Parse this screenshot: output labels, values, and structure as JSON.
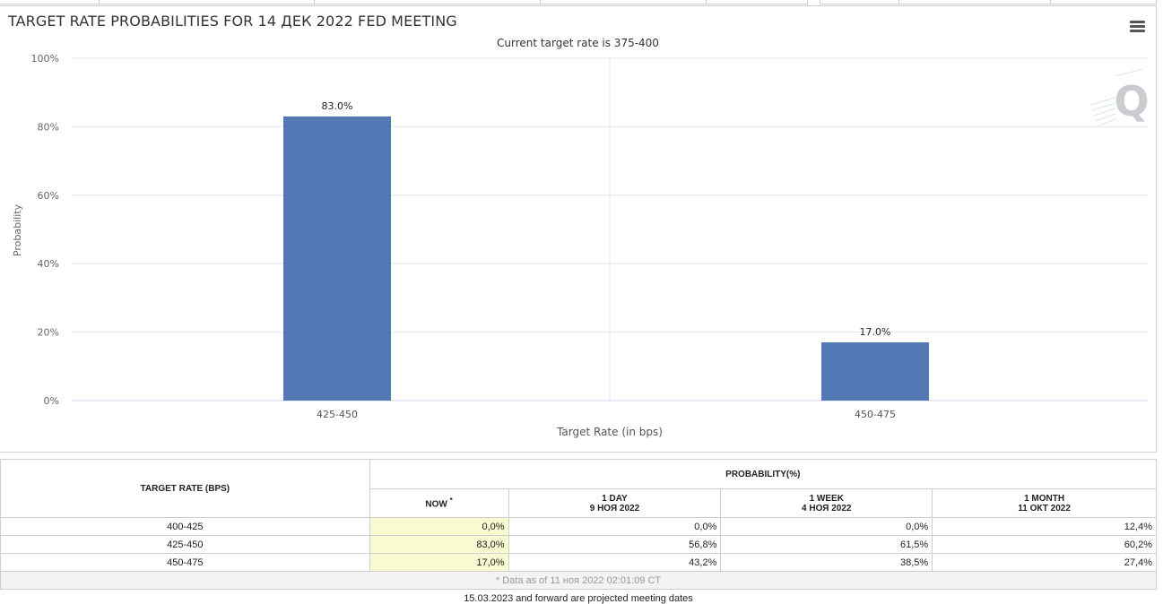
{
  "chart": {
    "title": "TARGET RATE PROBABILITIES FOR 14 ДЕК 2022 FED MEETING",
    "subtitle": "Current target rate is 375-400",
    "menu_icon": "hamburger-menu-icon",
    "watermark_icon": "q-logo-icon"
  },
  "chart_data": {
    "type": "bar",
    "title": "TARGET RATE PROBABILITIES FOR 14 ДЕК 2022 FED MEETING",
    "subtitle": "Current target rate is 375-400",
    "categories": [
      "425-450",
      "450-475"
    ],
    "values": [
      83.0,
      17.0
    ],
    "data_labels": [
      "83.0%",
      "17.0%"
    ],
    "xlabel": "Target Rate (in bps)",
    "ylabel": "Probability",
    "ylim": [
      0,
      100
    ],
    "yticks": [
      "0%",
      "20%",
      "40%",
      "60%",
      "80%",
      "100%"
    ],
    "ytick_values": [
      0,
      20,
      40,
      60,
      80,
      100
    ],
    "grid": true,
    "bar_color": "#5279b3"
  },
  "table": {
    "header_rate": "TARGET RATE (BPS)",
    "header_prob": "PROBABILITY(%)",
    "col_now": "NOW",
    "col_now_mark": "*",
    "col_day": "1 DAY",
    "col_day_date": "9 НОЯ 2022",
    "col_week": "1 WEEK",
    "col_week_date": "4 НОЯ 2022",
    "col_month": "1 MONTH",
    "col_month_date": "11 ОКТ 2022",
    "rows": [
      {
        "rate": "400-425",
        "now": "0,0%",
        "day": "0,0%",
        "week": "0,0%",
        "month": "12,4%"
      },
      {
        "rate": "425-450",
        "now": "83,0%",
        "day": "56,8%",
        "week": "61,5%",
        "month": "60,2%"
      },
      {
        "rate": "450-475",
        "now": "17,0%",
        "day": "43,2%",
        "week": "38,5%",
        "month": "27,4%"
      }
    ],
    "note": "* Data as of 11 ноя 2022 02:01:09 CT"
  },
  "footer_note": "15.03.2023 and forward are projected meeting dates"
}
